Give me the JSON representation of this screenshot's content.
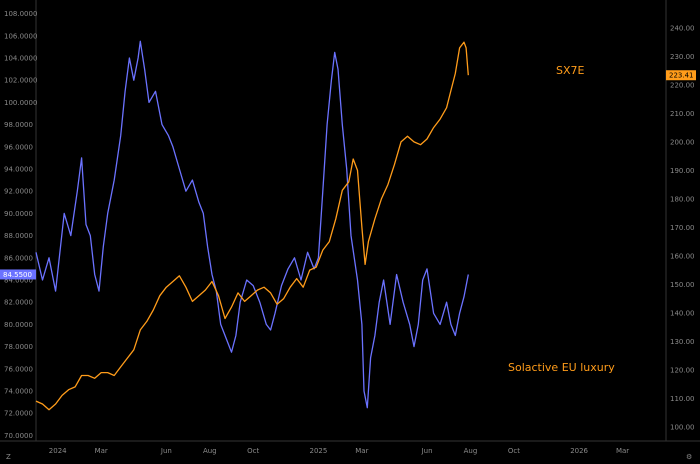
{
  "chart_data": {
    "type": "line",
    "grid": false,
    "left_axis": {
      "ticks": [
        "108.0000",
        "106.0000",
        "104.0000",
        "102.0000",
        "100.0000",
        "98.0000",
        "96.0000",
        "94.0000",
        "92.0000",
        "90.0000",
        "88.0000",
        "86.0000",
        "84.0000",
        "82.0000",
        "80.0000",
        "78.0000",
        "76.0000",
        "74.0000",
        "72.0000",
        "70.0000"
      ],
      "range": [
        69.5,
        108.5
      ]
    },
    "right_axis": {
      "ticks": [
        "240.00",
        "230.00",
        "220.00",
        "210.00",
        "200.00",
        "190.00",
        "180.00",
        "170.00",
        "160.00",
        "150.00",
        "140.00",
        "130.00",
        "120.00",
        "110.00",
        "100.00"
      ],
      "range": [
        95,
        247
      ]
    },
    "x_axis": {
      "ticks": [
        "2024",
        "Mar",
        "Jun",
        "Aug",
        "Oct",
        "2025",
        "Mar",
        "Jun",
        "Aug",
        "Oct",
        "2026",
        "Mar"
      ],
      "tick_months": [
        12,
        14,
        17,
        19,
        21,
        24,
        26,
        29,
        31,
        33,
        36,
        38
      ],
      "range_months": [
        11,
        40
      ]
    },
    "series": [
      {
        "name": "Solactive EU luxury",
        "axis": "left",
        "color": "#6b72ff",
        "last_label": "84.5500",
        "points": [
          [
            11.0,
            86.5
          ],
          [
            11.3,
            84.0
          ],
          [
            11.6,
            86.0
          ],
          [
            11.9,
            83.0
          ],
          [
            12.3,
            90.0
          ],
          [
            12.6,
            88.0
          ],
          [
            12.9,
            92.0
          ],
          [
            13.1,
            95.0
          ],
          [
            13.3,
            89.0
          ],
          [
            13.5,
            88.0
          ],
          [
            13.7,
            84.5
          ],
          [
            13.9,
            83.0
          ],
          [
            14.1,
            87.0
          ],
          [
            14.3,
            90.0
          ],
          [
            14.6,
            93.0
          ],
          [
            14.9,
            97.0
          ],
          [
            15.1,
            101.0
          ],
          [
            15.3,
            104.0
          ],
          [
            15.5,
            102.0
          ],
          [
            15.7,
            104.0
          ],
          [
            15.8,
            105.5
          ],
          [
            16.0,
            103.0
          ],
          [
            16.2,
            100.0
          ],
          [
            16.5,
            101.0
          ],
          [
            16.8,
            98.0
          ],
          [
            17.1,
            97.0
          ],
          [
            17.3,
            96.0
          ],
          [
            17.6,
            94.0
          ],
          [
            17.9,
            92.0
          ],
          [
            18.2,
            93.0
          ],
          [
            18.5,
            91.0
          ],
          [
            18.7,
            90.0
          ],
          [
            18.9,
            87.0
          ],
          [
            19.1,
            84.5
          ],
          [
            19.3,
            83.0
          ],
          [
            19.5,
            80.0
          ],
          [
            19.8,
            78.5
          ],
          [
            20.0,
            77.5
          ],
          [
            20.2,
            79.0
          ],
          [
            20.4,
            82.0
          ],
          [
            20.7,
            84.0
          ],
          [
            21.0,
            83.5
          ],
          [
            21.3,
            82.0
          ],
          [
            21.6,
            80.0
          ],
          [
            21.8,
            79.5
          ],
          [
            22.0,
            81.0
          ],
          [
            22.3,
            83.5
          ],
          [
            22.6,
            85.0
          ],
          [
            22.9,
            86.0
          ],
          [
            23.2,
            84.0
          ],
          [
            23.5,
            86.5
          ],
          [
            23.8,
            85.0
          ],
          [
            24.0,
            86.0
          ],
          [
            24.2,
            92.0
          ],
          [
            24.4,
            98.0
          ],
          [
            24.6,
            102.0
          ],
          [
            24.75,
            104.5
          ],
          [
            24.9,
            103.0
          ],
          [
            25.1,
            98.0
          ],
          [
            25.3,
            94.0
          ],
          [
            25.5,
            88.0
          ],
          [
            25.8,
            84.0
          ],
          [
            26.0,
            80.0
          ],
          [
            26.1,
            74.0
          ],
          [
            26.25,
            72.5
          ],
          [
            26.4,
            77.0
          ],
          [
            26.6,
            79.0
          ],
          [
            26.8,
            82.0
          ],
          [
            27.0,
            84.0
          ],
          [
            27.3,
            80.0
          ],
          [
            27.6,
            84.5
          ],
          [
            27.9,
            82.0
          ],
          [
            28.2,
            80.0
          ],
          [
            28.4,
            78.0
          ],
          [
            28.6,
            80.0
          ],
          [
            28.8,
            84.0
          ],
          [
            29.0,
            85.0
          ],
          [
            29.3,
            81.0
          ],
          [
            29.6,
            80.0
          ],
          [
            29.9,
            82.0
          ],
          [
            30.1,
            80.0
          ],
          [
            30.3,
            79.0
          ],
          [
            30.5,
            81.0
          ],
          [
            30.7,
            82.5
          ],
          [
            30.9,
            84.5
          ]
        ]
      },
      {
        "name": "SX7E",
        "axis": "right",
        "color": "#ff9c1a",
        "last_label": "223.41",
        "points": [
          [
            11.0,
            109.0
          ],
          [
            11.3,
            108.0
          ],
          [
            11.6,
            106.0
          ],
          [
            11.9,
            108.0
          ],
          [
            12.2,
            111.0
          ],
          [
            12.5,
            113.0
          ],
          [
            12.8,
            114.0
          ],
          [
            13.1,
            118.0
          ],
          [
            13.4,
            118.0
          ],
          [
            13.7,
            117.0
          ],
          [
            14.0,
            119.0
          ],
          [
            14.3,
            119.0
          ],
          [
            14.6,
            118.0
          ],
          [
            14.9,
            121.0
          ],
          [
            15.2,
            124.0
          ],
          [
            15.5,
            127.0
          ],
          [
            15.8,
            134.0
          ],
          [
            16.1,
            137.0
          ],
          [
            16.4,
            141.0
          ],
          [
            16.7,
            146.0
          ],
          [
            17.0,
            149.0
          ],
          [
            17.3,
            151.0
          ],
          [
            17.6,
            153.0
          ],
          [
            17.9,
            149.0
          ],
          [
            18.2,
            144.0
          ],
          [
            18.5,
            146.0
          ],
          [
            18.8,
            148.0
          ],
          [
            19.1,
            151.0
          ],
          [
            19.4,
            146.0
          ],
          [
            19.7,
            138.0
          ],
          [
            20.0,
            142.0
          ],
          [
            20.3,
            147.0
          ],
          [
            20.6,
            144.0
          ],
          [
            20.9,
            146.0
          ],
          [
            21.2,
            148.0
          ],
          [
            21.5,
            149.0
          ],
          [
            21.8,
            147.0
          ],
          [
            22.1,
            143.0
          ],
          [
            22.4,
            145.0
          ],
          [
            22.7,
            149.0
          ],
          [
            23.0,
            152.0
          ],
          [
            23.3,
            149.0
          ],
          [
            23.6,
            155.0
          ],
          [
            23.9,
            156.0
          ],
          [
            24.2,
            162.0
          ],
          [
            24.5,
            165.0
          ],
          [
            24.8,
            173.0
          ],
          [
            25.1,
            183.0
          ],
          [
            25.4,
            186.0
          ],
          [
            25.6,
            194.0
          ],
          [
            25.8,
            190.0
          ],
          [
            26.0,
            170.0
          ],
          [
            26.15,
            157.0
          ],
          [
            26.3,
            165.0
          ],
          [
            26.6,
            173.0
          ],
          [
            26.9,
            180.0
          ],
          [
            27.2,
            185.0
          ],
          [
            27.5,
            192.0
          ],
          [
            27.8,
            200.0
          ],
          [
            28.1,
            202.0
          ],
          [
            28.4,
            200.0
          ],
          [
            28.7,
            199.0
          ],
          [
            29.0,
            201.0
          ],
          [
            29.3,
            205.0
          ],
          [
            29.6,
            208.0
          ],
          [
            29.9,
            212.0
          ],
          [
            30.1,
            218.0
          ],
          [
            30.3,
            224.0
          ],
          [
            30.5,
            233.0
          ],
          [
            30.7,
            235.0
          ],
          [
            30.8,
            233.0
          ],
          [
            30.9,
            223.4
          ]
        ]
      }
    ],
    "annotations": [
      {
        "text": "SX7E",
        "color": "#ff9c1a"
      },
      {
        "text": "Solactive EU luxury",
        "color": "#ff9c1a"
      }
    ]
  },
  "ui": {
    "left_corner_label": "Z",
    "right_corner_label": "⚙"
  }
}
